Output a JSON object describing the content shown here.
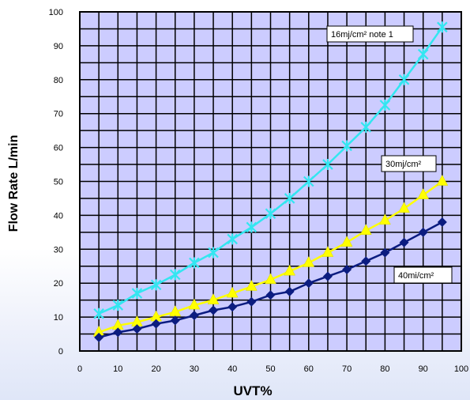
{
  "chart_data": {
    "type": "line",
    "xlabel": "UVT%",
    "ylabel": "Flow  Rate  L/min",
    "xlim": [
      0,
      100
    ],
    "ylim": [
      0,
      100
    ],
    "x_ticks": [
      0,
      10,
      20,
      30,
      40,
      50,
      60,
      70,
      80,
      90,
      100
    ],
    "y_ticks": [
      0,
      10,
      20,
      30,
      40,
      50,
      60,
      70,
      80,
      90,
      100
    ],
    "grid": true,
    "plot_background": "#ccccff",
    "x": [
      5,
      10,
      15,
      20,
      25,
      30,
      35,
      40,
      45,
      50,
      55,
      60,
      65,
      70,
      75,
      80,
      85,
      90,
      95
    ],
    "series": [
      {
        "name": "16mj/cm²  note 1",
        "color": "#33e6f0",
        "marker": "x",
        "values": [
          11,
          13.5,
          17,
          19.5,
          22.5,
          26,
          29,
          33,
          36.5,
          40.5,
          45,
          50,
          55,
          60.5,
          66,
          72.5,
          80,
          87.5,
          95.5
        ]
      },
      {
        "name": "30mj/cm²",
        "color": "#ffff00",
        "marker": "triangle",
        "values": [
          5.5,
          7.5,
          8.5,
          10,
          11.5,
          13.5,
          15,
          17,
          19,
          21,
          23.5,
          26,
          29,
          32,
          35.5,
          38.5,
          42,
          46,
          50
        ]
      },
      {
        "name": "40mi/cm²",
        "color": "#0b1c80",
        "marker": "diamond",
        "values": [
          4,
          5.5,
          6.5,
          8,
          9,
          10.5,
          12,
          13,
          14.5,
          16.5,
          17.5,
          20,
          22,
          24,
          26.5,
          29,
          32,
          35,
          38
        ]
      }
    ]
  }
}
